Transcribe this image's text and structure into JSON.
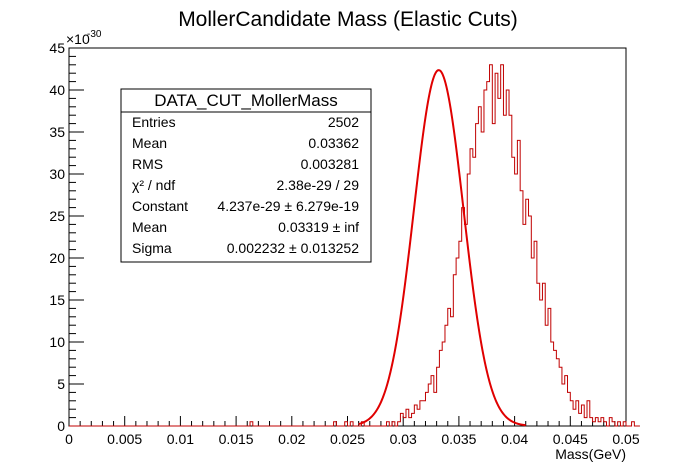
{
  "chart_data": {
    "type": "histogram",
    "title": "MollerCandidate Mass (Elastic Cuts)",
    "xlabel": "Mass(GeV)",
    "ylabel": "",
    "y_multiplier_label": "×10",
    "y_multiplier_exp": "-30",
    "xlim": [
      0,
      0.05
    ],
    "ylim": [
      0,
      45
    ],
    "x_ticks": [
      "0",
      "0.005",
      "0.01",
      "0.015",
      "0.02",
      "0.025",
      "0.03",
      "0.035",
      "0.04",
      "0.045",
      "0.05"
    ],
    "y_ticks": [
      "0",
      "5",
      "10",
      "15",
      "20",
      "25",
      "30",
      "35",
      "40",
      "45"
    ],
    "histogram_color": "#c00000",
    "fit_color": "#e00000",
    "bin_width": 0.00025,
    "bin_start": 0.0,
    "bin_values": [
      0,
      0,
      0,
      0,
      0,
      0,
      0,
      0,
      0,
      0,
      0,
      0,
      0,
      0,
      0,
      0,
      0,
      0,
      0,
      0,
      0,
      0,
      0,
      0,
      0,
      0,
      0,
      0,
      0,
      0,
      0,
      0,
      0,
      0,
      0,
      0,
      0,
      0,
      0,
      0,
      0,
      0,
      0,
      0,
      0,
      0,
      0,
      0,
      0,
      0,
      0,
      0,
      0,
      0,
      0,
      0,
      0,
      0,
      0,
      0,
      0,
      0,
      0,
      0,
      0,
      0.5,
      0,
      0,
      0,
      0,
      0,
      0,
      0,
      0,
      0,
      0,
      0,
      0,
      0,
      0,
      0,
      0,
      0,
      0,
      0,
      0,
      0,
      0,
      0,
      0,
      0,
      0,
      0,
      0,
      0,
      0.5,
      0,
      0,
      0,
      0.5,
      0,
      0.5,
      0,
      0,
      0,
      0.5,
      0,
      0,
      0,
      0,
      0,
      0,
      0,
      0,
      0.5,
      0,
      0.5,
      0,
      0.5,
      1.5,
      1,
      2,
      1,
      1.5,
      2.5,
      2,
      3,
      3,
      4,
      5,
      6,
      4,
      7,
      9,
      10,
      12,
      14,
      13,
      18,
      20,
      22,
      26,
      24,
      30,
      33,
      32,
      36,
      38,
      35,
      40,
      41,
      43,
      36,
      42,
      39,
      43,
      37,
      40,
      37,
      32,
      30,
      34,
      28,
      24,
      27,
      25,
      20,
      22,
      17,
      15,
      17,
      12,
      14,
      10,
      9,
      8,
      7,
      5,
      6,
      4,
      3,
      2,
      3,
      1.5,
      2.5,
      1,
      3,
      1,
      0.5,
      1,
      0.5,
      1,
      0.5,
      0,
      1,
      0.5,
      0,
      0.5,
      0,
      0.5,
      0,
      0,
      0.5,
      0,
      0
    ],
    "fit": {
      "function": "gaus",
      "constant": 42.37,
      "mean": 0.03319,
      "sigma": 0.002232,
      "range": [
        0.026,
        0.041
      ]
    },
    "stats_box": {
      "title": "DATA_CUT_MollerMass",
      "rows": [
        {
          "label": "Entries",
          "value": "2502"
        },
        {
          "label": "Mean",
          "value": "0.03362"
        },
        {
          "label": "RMS",
          "value": "0.003281"
        },
        {
          "label": "χ² / ndf",
          "value": "2.38e-29 / 29"
        },
        {
          "label": "Constant",
          "value": "4.237e-29 ± 6.279e-19"
        },
        {
          "label": "Mean",
          "value": "0.03319 ± inf"
        },
        {
          "label": "Sigma",
          "value": "0.002232 ± 0.013252"
        }
      ]
    }
  }
}
